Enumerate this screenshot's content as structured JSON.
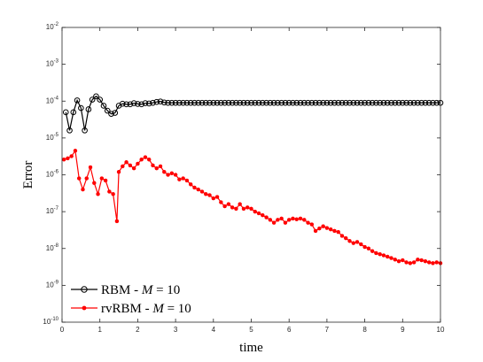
{
  "chart_data": {
    "type": "line",
    "title": "",
    "xlabel": "time",
    "ylabel": "Error",
    "xlim": [
      0,
      10
    ],
    "ylim": [
      1e-10,
      0.01
    ],
    "yscale": "log",
    "grid": false,
    "legend_placement": "bottom-left",
    "xticks": [
      "0",
      "1",
      "2",
      "3",
      "4",
      "5",
      "6",
      "7",
      "8",
      "9",
      "10"
    ],
    "yticks": [
      {
        "base": "10",
        "exp": "-10"
      },
      {
        "base": "10",
        "exp": "-9"
      },
      {
        "base": "10",
        "exp": "-8"
      },
      {
        "base": "10",
        "exp": "-7"
      },
      {
        "base": "10",
        "exp": "-6"
      },
      {
        "base": "10",
        "exp": "-5"
      },
      {
        "base": "10",
        "exp": "-4"
      },
      {
        "base": "10",
        "exp": "-3"
      },
      {
        "base": "10",
        "exp": "-2"
      }
    ],
    "series": [
      {
        "name": "RBM - M = 10",
        "legend_text": "RBM - ",
        "legend_math": "M",
        "legend_rest": " = 10",
        "color": "#000000",
        "marker": "open-circle",
        "x": [
          0.1,
          0.2,
          0.3,
          0.4,
          0.5,
          0.6,
          0.7,
          0.8,
          0.9,
          1.0,
          1.1,
          1.2,
          1.3,
          1.4,
          1.5,
          1.6,
          1.7,
          1.8,
          1.9,
          2.0,
          2.1,
          2.2,
          2.3,
          2.4,
          2.5,
          2.6,
          2.7,
          2.8,
          2.9,
          3.0,
          3.1,
          3.2,
          3.3,
          3.4,
          3.5,
          3.6,
          3.7,
          3.8,
          3.9,
          4.0,
          4.1,
          4.2,
          4.3,
          4.4,
          4.5,
          4.6,
          4.7,
          4.8,
          4.9,
          5.0,
          5.1,
          5.2,
          5.3,
          5.4,
          5.5,
          5.6,
          5.7,
          5.8,
          5.9,
          6.0,
          6.1,
          6.2,
          6.3,
          6.4,
          6.5,
          6.6,
          6.7,
          6.8,
          6.9,
          7.0,
          7.1,
          7.2,
          7.3,
          7.4,
          7.5,
          7.6,
          7.7,
          7.8,
          7.9,
          8.0,
          8.1,
          8.2,
          8.3,
          8.4,
          8.5,
          8.6,
          8.7,
          8.8,
          8.9,
          9.0,
          9.1,
          9.2,
          9.3,
          9.4,
          9.5,
          9.6,
          9.7,
          9.8,
          9.9,
          10.0
        ],
        "y": [
          5e-05,
          1.6e-05,
          5e-05,
          0.000105,
          6.5e-05,
          1.6e-05,
          6e-05,
          0.00011,
          0.000135,
          0.00011,
          7.5e-05,
          5.5e-05,
          4.5e-05,
          4.8e-05,
          7.5e-05,
          8.5e-05,
          8.2e-05,
          8.2e-05,
          8.8e-05,
          8.4e-05,
          8.2e-05,
          8.8e-05,
          8.6e-05,
          9e-05,
          9.5e-05,
          9.8e-05,
          9.2e-05,
          9e-05,
          9e-05,
          9e-05,
          9e-05,
          9e-05,
          9e-05,
          9e-05,
          9e-05,
          9e-05,
          9e-05,
          9e-05,
          9e-05,
          9e-05,
          9e-05,
          9e-05,
          9e-05,
          9e-05,
          9e-05,
          9e-05,
          9e-05,
          9e-05,
          9e-05,
          9e-05,
          9e-05,
          9e-05,
          9e-05,
          9e-05,
          9e-05,
          9e-05,
          9e-05,
          9e-05,
          9e-05,
          9e-05,
          9e-05,
          9e-05,
          9e-05,
          9e-05,
          9e-05,
          9e-05,
          9e-05,
          9e-05,
          9e-05,
          9e-05,
          9e-05,
          9e-05,
          9e-05,
          9e-05,
          9e-05,
          9e-05,
          9e-05,
          9e-05,
          9e-05,
          9e-05,
          9e-05,
          9e-05,
          9e-05,
          9e-05,
          9e-05,
          9e-05,
          9e-05,
          9e-05,
          9e-05,
          9e-05,
          9e-05,
          9e-05,
          9e-05,
          9e-05,
          9e-05,
          9e-05,
          9e-05,
          9e-05,
          9e-05,
          9e-05
        ]
      },
      {
        "name": "rvRBM - M = 10",
        "legend_text": "rvRBM - ",
        "legend_math": "M",
        "legend_rest": " = 10",
        "color": "#ff0000",
        "marker": "filled-dot",
        "x": [
          0.05,
          0.15,
          0.25,
          0.35,
          0.45,
          0.55,
          0.65,
          0.75,
          0.85,
          0.95,
          1.05,
          1.15,
          1.25,
          1.35,
          1.45,
          1.5,
          1.6,
          1.7,
          1.8,
          1.9,
          2.0,
          2.1,
          2.2,
          2.3,
          2.4,
          2.5,
          2.6,
          2.7,
          2.8,
          2.9,
          3.0,
          3.1,
          3.2,
          3.3,
          3.4,
          3.5,
          3.6,
          3.7,
          3.8,
          3.9,
          4.0,
          4.1,
          4.2,
          4.3,
          4.4,
          4.5,
          4.6,
          4.7,
          4.8,
          4.9,
          5.0,
          5.1,
          5.2,
          5.3,
          5.4,
          5.5,
          5.6,
          5.7,
          5.8,
          5.9,
          6.0,
          6.1,
          6.2,
          6.3,
          6.4,
          6.5,
          6.6,
          6.7,
          6.8,
          6.9,
          7.0,
          7.1,
          7.2,
          7.3,
          7.4,
          7.5,
          7.6,
          7.7,
          7.8,
          7.9,
          8.0,
          8.1,
          8.2,
          8.3,
          8.4,
          8.5,
          8.6,
          8.7,
          8.8,
          8.9,
          9.0,
          9.1,
          9.2,
          9.3,
          9.4,
          9.5,
          9.6,
          9.7,
          9.8,
          9.9,
          10.0
        ],
        "y": [
          2.6e-06,
          2.8e-06,
          3.2e-06,
          4.5e-06,
          8e-07,
          4e-07,
          8e-07,
          1.6e-06,
          6e-07,
          3e-07,
          8e-07,
          7e-07,
          3.5e-07,
          3e-07,
          5.5e-08,
          1.2e-06,
          1.7e-06,
          2.2e-06,
          1.8e-06,
          1.5e-06,
          2e-06,
          2.6e-06,
          3e-06,
          2.6e-06,
          1.8e-06,
          1.5e-06,
          1.7e-06,
          1.2e-06,
          1e-06,
          1.1e-06,
          1e-06,
          7.5e-07,
          8e-07,
          7e-07,
          5.5e-07,
          4.5e-07,
          4e-07,
          3.5e-07,
          3e-07,
          2.8e-07,
          2.3e-07,
          2.5e-07,
          1.8e-07,
          1.4e-07,
          1.6e-07,
          1.3e-07,
          1.2e-07,
          1.6e-07,
          1.2e-07,
          1.3e-07,
          1.2e-07,
          1e-07,
          9e-08,
          8e-08,
          7e-08,
          6e-08,
          5e-08,
          6e-08,
          6.5e-08,
          5e-08,
          6e-08,
          6.5e-08,
          6.2e-08,
          6.5e-08,
          6e-08,
          5e-08,
          4.5e-08,
          3e-08,
          3.5e-08,
          4e-08,
          3.6e-08,
          3.3e-08,
          3e-08,
          2.8e-08,
          2.2e-08,
          1.9e-08,
          1.6e-08,
          1.4e-08,
          1.5e-08,
          1.3e-08,
          1.1e-08,
          1e-08,
          8.5e-09,
          7.5e-09,
          7e-09,
          6.5e-09,
          6e-09,
          5.5e-09,
          5e-09,
          4.5e-09,
          4.8e-09,
          4.2e-09,
          4e-09,
          4.2e-09,
          5e-09,
          4.8e-09,
          4.5e-09,
          4.2e-09,
          4e-09,
          4.2e-09,
          4e-09
        ]
      }
    ]
  }
}
